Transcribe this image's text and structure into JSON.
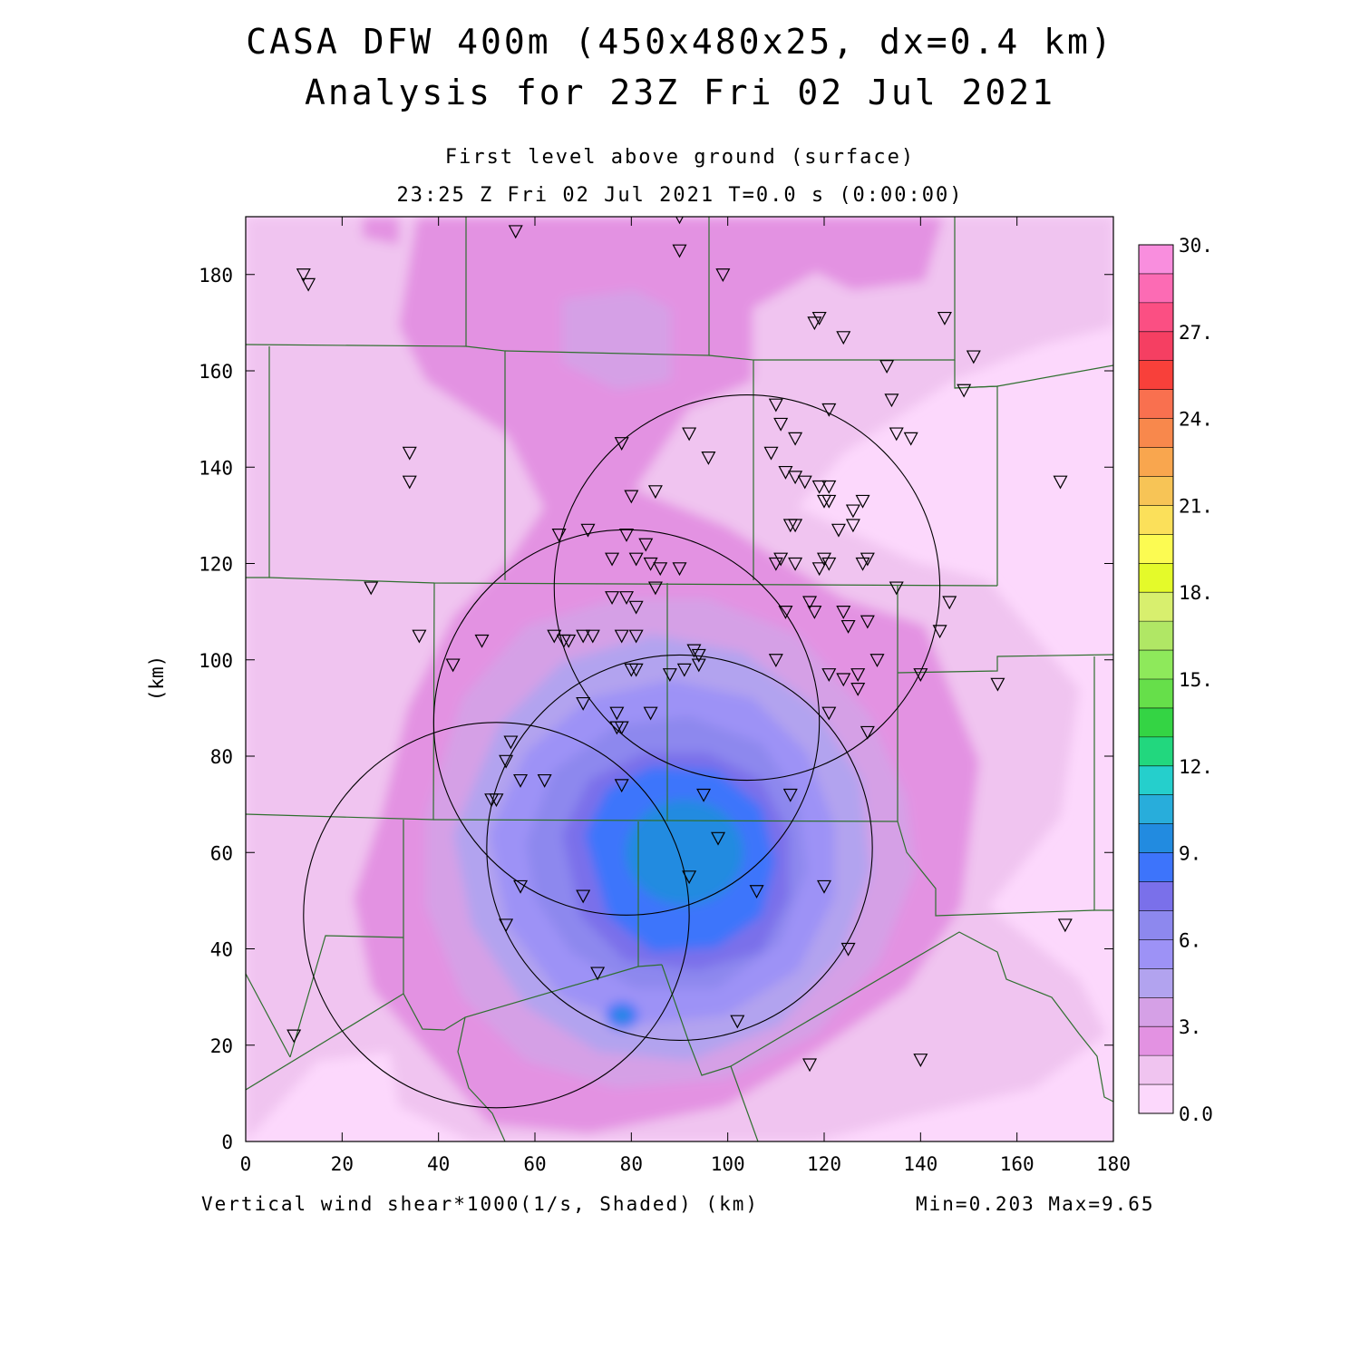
{
  "title": {
    "line1": "CASA DFW 400m (450x480x25, dx=0.4 km)",
    "line2": "Analysis for 23Z Fri 02 Jul 2021"
  },
  "subtitle": {
    "level": "First level above ground (surface)",
    "time": "23:25 Z Fri 02 Jul 2021    T=0.0 s (0:00:00)"
  },
  "footer": {
    "variable": "Vertical wind shear*1000(1/s, Shaded)  (km)",
    "minmax": "Min=0.203 Max=9.65"
  },
  "axes": {
    "x": {
      "ticks": [
        "0",
        "20",
        "40",
        "60",
        "80",
        "100",
        "120",
        "140",
        "160",
        "180"
      ],
      "range": [
        0,
        180
      ]
    },
    "y": {
      "ticks": [
        "0",
        "20",
        "40",
        "60",
        "80",
        "100",
        "120",
        "140",
        "160",
        "180"
      ],
      "range": [
        0,
        192
      ],
      "label": "(km)"
    }
  },
  "colorbar": {
    "labels": [
      "30.",
      "27.",
      "24.",
      "21.",
      "18.",
      "15.",
      "12.",
      "9.",
      "6.",
      "3.",
      "0.0"
    ],
    "colors": [
      "#f98ede",
      "#fc6bb4",
      "#fb4f83",
      "#f53f62",
      "#f8403a",
      "#f9704f",
      "#f8884c",
      "#f9a64e",
      "#f7c456",
      "#fbe05a",
      "#fcfb52",
      "#e4fa2a",
      "#d8ef6e",
      "#b0e765",
      "#8ee95b",
      "#66df4a",
      "#34d444",
      "#22d77e",
      "#25cfcc",
      "#28addb",
      "#228be0",
      "#3d74fb",
      "#7a70ea",
      "#8d88ee",
      "#9d92f6",
      "#b2a3ef",
      "#d5a0e6",
      "#e392e2",
      "#f0c4f0",
      "#fcd8fc"
    ]
  },
  "chart_data": {
    "type": "heatmap",
    "variable": "Vertical wind shear*1000",
    "units": "1/s",
    "min": 0.203,
    "max": 9.65,
    "xrange_km": [
      0,
      180
    ],
    "yrange_km": [
      0,
      192
    ],
    "field_centers": [
      {
        "x": 82,
        "y": 60,
        "value": 9.65
      },
      {
        "x": 78,
        "y": 26,
        "value": 9.0
      }
    ],
    "radar_circles_km": [
      {
        "cx": 104,
        "cy": 115,
        "r": 40
      },
      {
        "cx": 79,
        "cy": 87,
        "r": 40
      },
      {
        "cx": 90,
        "cy": 61,
        "r": 40
      },
      {
        "cx": 52,
        "cy": 47,
        "r": 40
      }
    ],
    "stations_km": [
      [
        12,
        180
      ],
      [
        13,
        178
      ],
      [
        56,
        189
      ],
      [
        90,
        192
      ],
      [
        90,
        185
      ],
      [
        99,
        180
      ],
      [
        118,
        170
      ],
      [
        119,
        171
      ],
      [
        124,
        167
      ],
      [
        133,
        161
      ],
      [
        134,
        154
      ],
      [
        138,
        146
      ],
      [
        135,
        147
      ],
      [
        145,
        171
      ],
      [
        151,
        163
      ],
      [
        149,
        156
      ],
      [
        121,
        152
      ],
      [
        110,
        153
      ],
      [
        111,
        149
      ],
      [
        114,
        146
      ],
      [
        109,
        143
      ],
      [
        96,
        142
      ],
      [
        92,
        147
      ],
      [
        78,
        145
      ],
      [
        34,
        143
      ],
      [
        34,
        137
      ],
      [
        169,
        137
      ],
      [
        85,
        135
      ],
      [
        80,
        134
      ],
      [
        112,
        139
      ],
      [
        114,
        138
      ],
      [
        116,
        137
      ],
      [
        119,
        136
      ],
      [
        121,
        136
      ],
      [
        120,
        133
      ],
      [
        121,
        133
      ],
      [
        128,
        133
      ],
      [
        126,
        131
      ],
      [
        126,
        128
      ],
      [
        123,
        127
      ],
      [
        113,
        128
      ],
      [
        114,
        128
      ],
      [
        65,
        126
      ],
      [
        71,
        127
      ],
      [
        79,
        126
      ],
      [
        83,
        124
      ],
      [
        76,
        121
      ],
      [
        81,
        121
      ],
      [
        84,
        120
      ],
      [
        86,
        119
      ],
      [
        90,
        119
      ],
      [
        111,
        121
      ],
      [
        110,
        120
      ],
      [
        114,
        120
      ],
      [
        120,
        121
      ],
      [
        119,
        119
      ],
      [
        121,
        120
      ],
      [
        129,
        121
      ],
      [
        128,
        120
      ],
      [
        135,
        115
      ],
      [
        85,
        115
      ],
      [
        26,
        115
      ],
      [
        146,
        112
      ],
      [
        76,
        113
      ],
      [
        79,
        113
      ],
      [
        81,
        111
      ],
      [
        117,
        112
      ],
      [
        118,
        110
      ],
      [
        112,
        110
      ],
      [
        124,
        110
      ],
      [
        125,
        107
      ],
      [
        129,
        108
      ],
      [
        144,
        106
      ],
      [
        64,
        105
      ],
      [
        66,
        104
      ],
      [
        67,
        104
      ],
      [
        70,
        105
      ],
      [
        72,
        105
      ],
      [
        78,
        105
      ],
      [
        81,
        105
      ],
      [
        36,
        105
      ],
      [
        49,
        104
      ],
      [
        93,
        102
      ],
      [
        94,
        101
      ],
      [
        94,
        99
      ],
      [
        110,
        100
      ],
      [
        131,
        100
      ],
      [
        43,
        99
      ],
      [
        80,
        98
      ],
      [
        81,
        98
      ],
      [
        88,
        97
      ],
      [
        91,
        98
      ],
      [
        121,
        97
      ],
      [
        124,
        96
      ],
      [
        127,
        97
      ],
      [
        127,
        94
      ],
      [
        140,
        97
      ],
      [
        156,
        95
      ],
      [
        70,
        91
      ],
      [
        77,
        89
      ],
      [
        84,
        89
      ],
      [
        121,
        89
      ],
      [
        77,
        86
      ],
      [
        78,
        86
      ],
      [
        129,
        85
      ],
      [
        55,
        83
      ],
      [
        54,
        79
      ],
      [
        57,
        75
      ],
      [
        62,
        75
      ],
      [
        78,
        74
      ],
      [
        51,
        71
      ],
      [
        52,
        71
      ],
      [
        95,
        72
      ],
      [
        113,
        72
      ],
      [
        98,
        63
      ],
      [
        92,
        55
      ],
      [
        120,
        53
      ],
      [
        57,
        53
      ],
      [
        70,
        51
      ],
      [
        106,
        52
      ],
      [
        54,
        45
      ],
      [
        170,
        45
      ],
      [
        125,
        40
      ],
      [
        73,
        35
      ],
      [
        102,
        25
      ],
      [
        10,
        22
      ],
      [
        117,
        16
      ],
      [
        140,
        17
      ]
    ]
  }
}
